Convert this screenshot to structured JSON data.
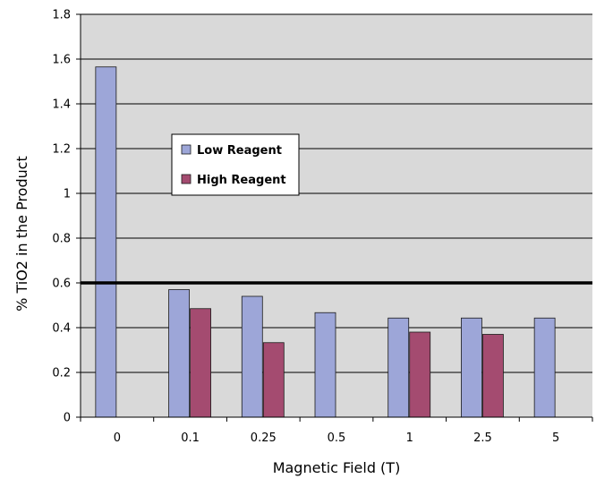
{
  "chart_data": {
    "type": "bar",
    "title": "",
    "xlabel": "Magnetic Field (T)",
    "ylabel": "% TiO2 in the Product",
    "categories": [
      "0",
      "0.1",
      "0.25",
      "0.5",
      "1",
      "2.5",
      "5"
    ],
    "series": [
      {
        "name": "Low Reagent",
        "color": "#9da6d8",
        "values": [
          1.565,
          0.57,
          0.54,
          0.467,
          0.443,
          0.443,
          0.443
        ]
      },
      {
        "name": "High Reagent",
        "color": "#a44b70",
        "values": [
          null,
          0.485,
          0.333,
          null,
          0.38,
          0.37,
          null
        ]
      }
    ],
    "ylim": [
      0,
      1.8
    ],
    "yticks": [
      "0",
      "0.2",
      "0.4",
      "0.6",
      "0.8",
      "1",
      "1.2",
      "1.4",
      "1.6",
      "1.8"
    ],
    "reference_line": {
      "y": 0.6,
      "color": "#000000"
    },
    "grid": true,
    "plot_background": "#d9d9d9",
    "legend_position": "upper-left-inside"
  }
}
